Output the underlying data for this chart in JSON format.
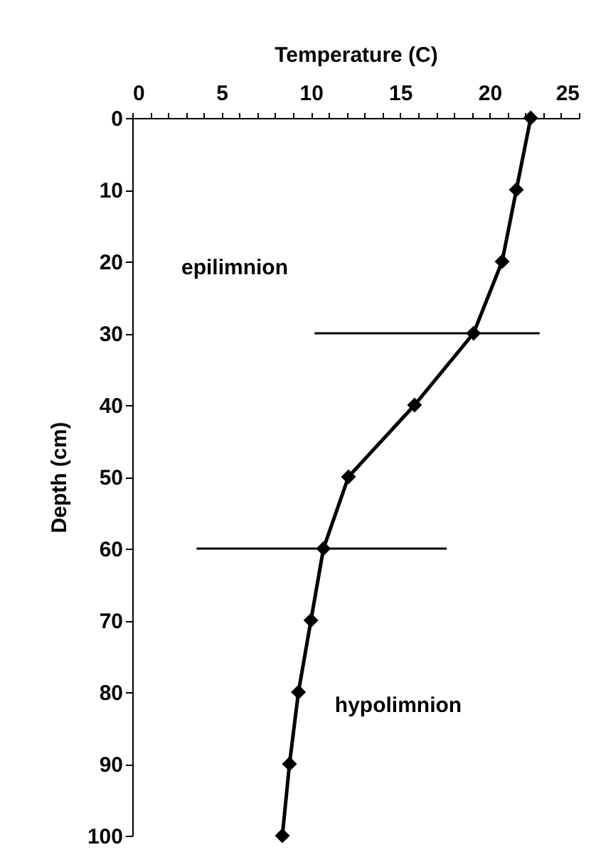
{
  "chart_data": {
    "type": "line",
    "xlabel": "Temperature (C)",
    "ylabel": "Depth (cm)",
    "annotations": [
      "epilimnion",
      "hypolimnion"
    ],
    "x": [
      22.3,
      21.5,
      20.7,
      19.1,
      15.8,
      12.1,
      10.7,
      10.0,
      9.3,
      8.8,
      8.4
    ],
    "series": [
      {
        "color": "#000000",
        "values": [
          0,
          10,
          20,
          30,
          40,
          50,
          60,
          70,
          80,
          90,
          100
        ],
        "xerrors": [
          null,
          null,
          null,
          [
            10.2,
            22.8
          ],
          null,
          null,
          [
            3.6,
            17.6
          ],
          null,
          null,
          null,
          null
        ]
      }
    ],
    "xlim": [
      0,
      25
    ],
    "xticks": [
      0,
      {
        "value": 1,
        "label": null
      },
      {
        "value": 2,
        "label": null
      },
      {
        "value": 3,
        "label": null
      },
      {
        "value": 4,
        "label": null
      },
      5,
      {
        "value": 6,
        "label": null
      },
      {
        "value": 7,
        "label": null
      },
      {
        "value": 8,
        "label": null
      },
      {
        "value": 9,
        "label": null
      },
      10,
      {
        "value": 11,
        "label": null
      },
      {
        "value": 12,
        "label": null
      },
      {
        "value": 13,
        "label": null
      },
      {
        "value": 14,
        "label": null
      },
      15,
      {
        "value": 16,
        "label": null
      },
      {
        "value": 17,
        "label": null
      },
      {
        "value": 18,
        "label": null
      },
      {
        "value": 19,
        "label": null
      },
      20,
      {
        "value": 21,
        "label": null
      },
      {
        "value": 22,
        "label": null
      },
      {
        "value": 23,
        "label": null
      },
      {
        "value": 24,
        "label": null
      },
      25
    ],
    "ylim": [
      100,
      0
    ],
    "yticks": [
      0,
      10,
      20,
      30,
      40,
      50,
      60,
      70,
      80,
      90,
      100
    ],
    "marker": "diamond",
    "line_style": "solid"
  }
}
